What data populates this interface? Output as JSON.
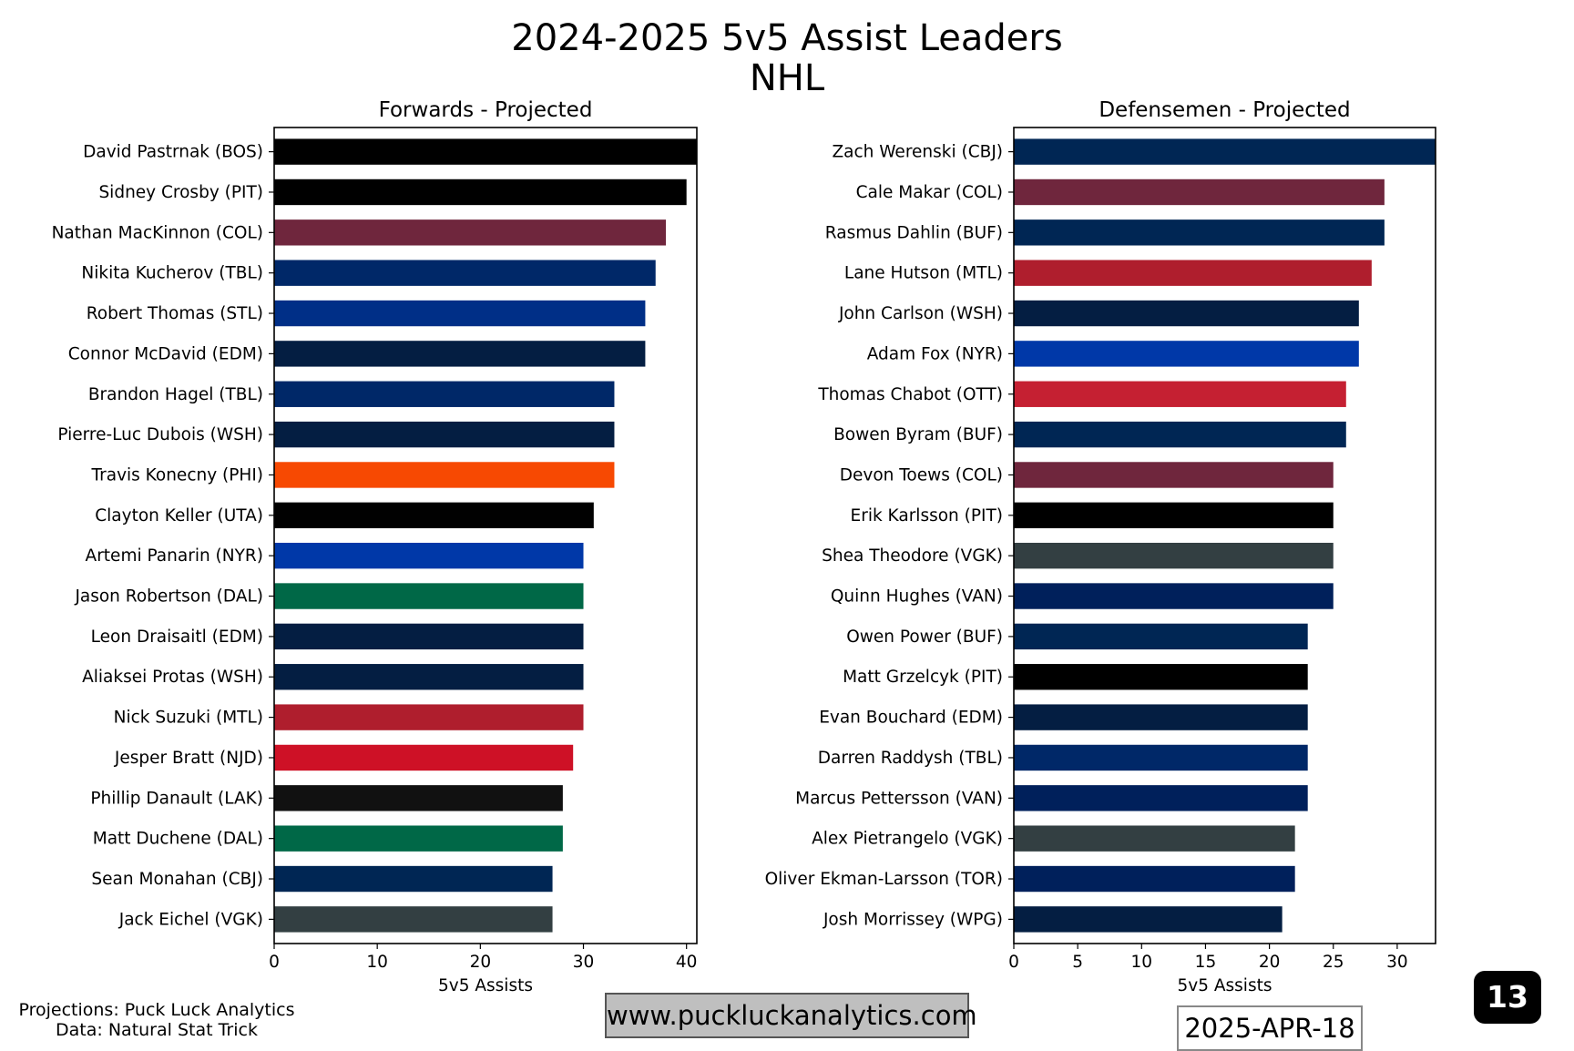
{
  "title_line1": "2024-2025 5v5 Assist Leaders",
  "title_line2": "NHL",
  "footer": {
    "source_line1": "Projections: Puck Luck Analytics",
    "source_line2": "Data: Natural Stat Trick",
    "website": "www.puckluckanalytics.com",
    "date": "2025-APR-18",
    "page_number": "13"
  },
  "chart_data": [
    {
      "type": "bar",
      "orientation": "horizontal",
      "title": "Forwards - Projected",
      "xlabel": "5v5 Assists",
      "ylabel": "",
      "xlim": [
        0,
        41
      ],
      "xticks": [
        0,
        10,
        20,
        30,
        40
      ],
      "categories": [
        "David Pastrnak (BOS)",
        "Sidney Crosby (PIT)",
        "Nathan MacKinnon (COL)",
        "Nikita Kucherov (TBL)",
        "Robert Thomas (STL)",
        "Connor McDavid (EDM)",
        "Brandon Hagel (TBL)",
        "Pierre-Luc Dubois (WSH)",
        "Travis Konecny (PHI)",
        "Clayton Keller (UTA)",
        "Artemi Panarin (NYR)",
        "Jason Robertson (DAL)",
        "Leon Draisaitl (EDM)",
        "Aliaksei Protas (WSH)",
        "Nick Suzuki (MTL)",
        "Jesper Bratt (NJD)",
        "Phillip Danault (LAK)",
        "Matt Duchene (DAL)",
        "Sean Monahan (CBJ)",
        "Jack Eichel (VGK)"
      ],
      "values": [
        41,
        40,
        38,
        37,
        36,
        36,
        33,
        33,
        33,
        31,
        30,
        30,
        30,
        30,
        30,
        29,
        28,
        28,
        27,
        27
      ],
      "colors": [
        "#000000",
        "#000000",
        "#6F263D",
        "#002868",
        "#002F87",
        "#041E42",
        "#002868",
        "#041E42",
        "#F74902",
        "#010101",
        "#0038A8",
        "#006847",
        "#041E42",
        "#041E42",
        "#AF1E2D",
        "#CE1126",
        "#111111",
        "#006847",
        "#002654",
        "#333F42"
      ]
    },
    {
      "type": "bar",
      "orientation": "horizontal",
      "title": "Defensemen - Projected",
      "xlabel": "5v5 Assists",
      "ylabel": "",
      "xlim": [
        0,
        33
      ],
      "xticks": [
        0,
        5,
        10,
        15,
        20,
        25,
        30
      ],
      "categories": [
        "Zach Werenski (CBJ)",
        "Cale Makar (COL)",
        "Rasmus Dahlin (BUF)",
        "Lane Hutson (MTL)",
        "John Carlson (WSH)",
        "Adam Fox (NYR)",
        "Thomas Chabot (OTT)",
        "Bowen Byram (BUF)",
        "Devon Toews (COL)",
        "Erik Karlsson (PIT)",
        "Shea Theodore (VGK)",
        "Quinn Hughes (VAN)",
        "Owen Power (BUF)",
        "Matt Grzelcyk (PIT)",
        "Evan Bouchard (EDM)",
        "Darren Raddysh (TBL)",
        "Marcus Pettersson (VAN)",
        "Alex Pietrangelo (VGK)",
        "Oliver Ekman-Larsson (TOR)",
        "Josh Morrissey (WPG)"
      ],
      "values": [
        33,
        29,
        29,
        28,
        27,
        27,
        26,
        26,
        25,
        25,
        25,
        25,
        23,
        23,
        23,
        23,
        23,
        22,
        22,
        21
      ],
      "colors": [
        "#002654",
        "#6F263D",
        "#002654",
        "#AF1E2D",
        "#041E42",
        "#0038A8",
        "#C52032",
        "#002654",
        "#6F263D",
        "#000000",
        "#333F42",
        "#00205B",
        "#002654",
        "#000000",
        "#041E42",
        "#002868",
        "#00205B",
        "#333F42",
        "#00205B",
        "#041E42"
      ]
    }
  ]
}
